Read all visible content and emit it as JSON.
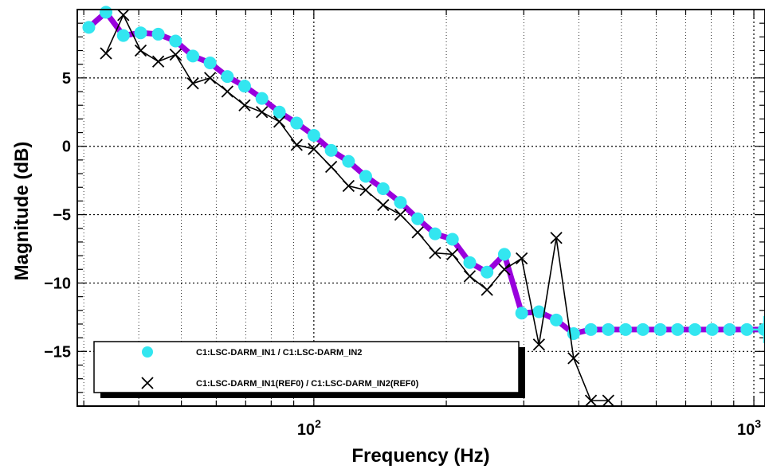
{
  "chart_data": {
    "type": "line",
    "xlabel": "Frequency (Hz)",
    "ylabel": "Magnitude (dB)",
    "x_scale": "log",
    "xlim": [
      29,
      1060
    ],
    "ylim": [
      -19,
      10
    ],
    "grid": true,
    "legend_position": "bottom-left",
    "x_tick_labels": [
      {
        "value": 100,
        "base": "10",
        "exp": "2"
      },
      {
        "value": 1000,
        "base": "10",
        "exp": "3"
      }
    ],
    "y_ticks": [
      5,
      0,
      -5,
      -10,
      -15
    ],
    "y_tick_labels": [
      "5",
      "0",
      "−5",
      "−10",
      "−15"
    ],
    "series": [
      {
        "name": "C1:LSC-DARM_IN1 / C1:LSC-DARM_IN2",
        "line_color": "#9900dd",
        "marker_color": "#33e6f0",
        "marker": "circle",
        "x": [
          30.8,
          33.7,
          36.9,
          40.4,
          44.3,
          48.5,
          53.1,
          58.1,
          63.6,
          69.6,
          76.2,
          83.5,
          91.4,
          100.0,
          109.5,
          119.9,
          131.2,
          143.7,
          157.3,
          172.2,
          188.6,
          206.5,
          226.1,
          247.5,
          271.0,
          296.7,
          324.8,
          355.6,
          389.4,
          426.3,
          466.8,
          511.1,
          559.6,
          612.7,
          670.8,
          734.5,
          804.1,
          880.5,
          964.0,
          1055.5
        ],
        "y": [
          8.7,
          9.8,
          8.1,
          8.3,
          8.2,
          7.7,
          6.6,
          6.1,
          5.1,
          4.4,
          3.5,
          2.5,
          1.7,
          0.8,
          -0.3,
          -1.1,
          -2.2,
          -3.1,
          -4.1,
          -5.3,
          -6.4,
          -6.8,
          -8.5,
          -9.2,
          -7.9,
          -12.2,
          -12.1,
          -12.7,
          -13.7,
          -13.4,
          -13.4,
          -13.4,
          -13.4,
          -13.4,
          -13.4,
          -13.4,
          -13.4,
          -13.4,
          -13.4,
          -13.4
        ]
      },
      {
        "name": "C1:LSC-DARM_IN1(REF0) / C1:LSC-DARM_IN2(REF0)",
        "line_color": "#000000",
        "marker": "x",
        "x": [
          33.7,
          36.9,
          40.4,
          44.3,
          48.5,
          53.1,
          58.1,
          63.6,
          69.6,
          76.2,
          83.5,
          91.4,
          100.0,
          109.5,
          119.9,
          131.2,
          143.7,
          157.3,
          172.2,
          188.6,
          206.5,
          226.1,
          247.5,
          271.0,
          296.7,
          324.8,
          355.6,
          389.4,
          426.3,
          466.8
        ],
        "y": [
          6.8,
          9.6,
          7.0,
          6.2,
          6.7,
          4.6,
          5.0,
          4.0,
          3.0,
          2.5,
          1.8,
          0.1,
          -0.2,
          -1.5,
          -2.9,
          -3.2,
          -4.3,
          -5.0,
          -6.3,
          -7.8,
          -7.9,
          -9.5,
          -10.5,
          -9.0,
          -8.2,
          -14.5,
          -6.7,
          -15.5,
          -18.6,
          -18.6
        ]
      }
    ]
  }
}
